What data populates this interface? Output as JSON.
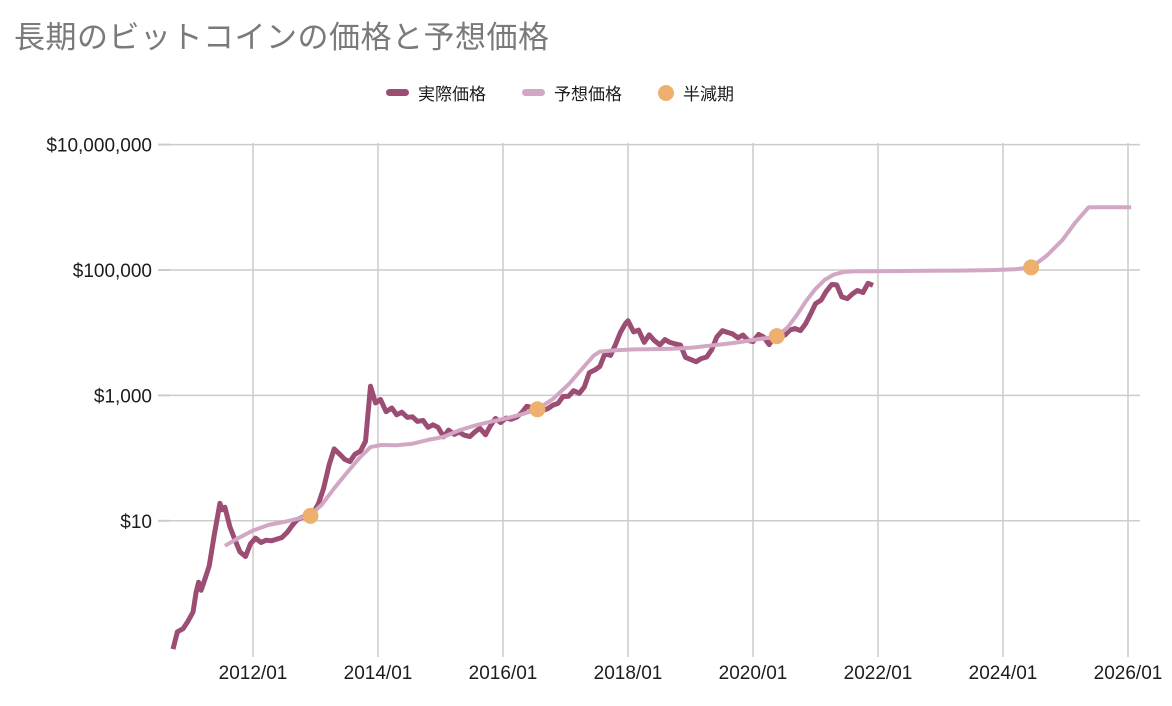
{
  "chart_data": {
    "type": "line",
    "title": "長期のビットコインの価格と予想価格",
    "colors": {
      "actual": "#9c4d73",
      "predicted": "#d2a7c3",
      "halving": "#eeb06f",
      "grid": "#cccccc",
      "axis_text": "#1c1c1c",
      "title": "#7a7a7a",
      "background": "#ffffff"
    },
    "legend": [
      {
        "label": "実際価格",
        "color": "#9c4d73",
        "marker": "line"
      },
      {
        "label": "予想価格",
        "color": "#d2a7c3",
        "marker": "line"
      },
      {
        "label": "半減期",
        "color": "#eeb06f",
        "marker": "circle"
      }
    ],
    "x_axis": {
      "unit": "year-month",
      "range": [
        2010.6,
        2026.2
      ],
      "ticks": [
        {
          "t": 2012.0,
          "label": "2012/01"
        },
        {
          "t": 2014.0,
          "label": "2014/01"
        },
        {
          "t": 2016.0,
          "label": "2016/01"
        },
        {
          "t": 2018.0,
          "label": "2018/01"
        },
        {
          "t": 2020.0,
          "label": "2020/01"
        },
        {
          "t": 2022.0,
          "label": "2022/01"
        },
        {
          "t": 2024.0,
          "label": "2024/01"
        },
        {
          "t": 2026.0,
          "label": "2026/01"
        }
      ]
    },
    "y_axis": {
      "scale": "log",
      "unit": "USD",
      "range": [
        0.09,
        10000000
      ],
      "ticks": [
        {
          "value": 10000000,
          "label": "$10,000,000"
        },
        {
          "value": 100000,
          "label": "$100,000"
        },
        {
          "value": 1000,
          "label": "$1,000"
        },
        {
          "value": 10,
          "label": "$10"
        }
      ]
    },
    "series": [
      {
        "name": "実際価格",
        "color": "#9c4d73",
        "width": 5,
        "points": [
          [
            2010.72,
            0.09
          ],
          [
            2010.79,
            0.17
          ],
          [
            2010.88,
            0.19
          ],
          [
            2010.96,
            0.25
          ],
          [
            2011.04,
            0.35
          ],
          [
            2011.09,
            0.72
          ],
          [
            2011.13,
            1.05
          ],
          [
            2011.17,
            0.78
          ],
          [
            2011.22,
            1.1
          ],
          [
            2011.3,
            1.9
          ],
          [
            2011.38,
            6
          ],
          [
            2011.47,
            19
          ],
          [
            2011.51,
            15
          ],
          [
            2011.55,
            16.5
          ],
          [
            2011.63,
            8
          ],
          [
            2011.71,
            5
          ],
          [
            2011.79,
            3.2
          ],
          [
            2011.88,
            2.7
          ],
          [
            2011.96,
            4.3
          ],
          [
            2012.04,
            5.3
          ],
          [
            2012.13,
            4.5
          ],
          [
            2012.21,
            4.9
          ],
          [
            2012.3,
            4.8
          ],
          [
            2012.38,
            5.1
          ],
          [
            2012.46,
            5.4
          ],
          [
            2012.55,
            6.6
          ],
          [
            2012.63,
            8.5
          ],
          [
            2012.71,
            10.5
          ],
          [
            2012.8,
            11.5
          ],
          [
            2012.88,
            10.8
          ],
          [
            2012.96,
            13
          ],
          [
            2013.05,
            19
          ],
          [
            2013.13,
            33
          ],
          [
            2013.22,
            80
          ],
          [
            2013.3,
            140
          ],
          [
            2013.38,
            117
          ],
          [
            2013.47,
            95
          ],
          [
            2013.55,
            88
          ],
          [
            2013.63,
            115
          ],
          [
            2013.72,
            130
          ],
          [
            2013.8,
            185
          ],
          [
            2013.88,
            1400
          ],
          [
            2013.96,
            760
          ],
          [
            2014.04,
            860
          ],
          [
            2014.13,
            550
          ],
          [
            2014.22,
            630
          ],
          [
            2014.3,
            490
          ],
          [
            2014.38,
            540
          ],
          [
            2014.47,
            445
          ],
          [
            2014.55,
            455
          ],
          [
            2014.63,
            385
          ],
          [
            2014.72,
            400
          ],
          [
            2014.8,
            310
          ],
          [
            2014.88,
            340
          ],
          [
            2014.96,
            310
          ],
          [
            2015.05,
            218
          ],
          [
            2015.13,
            280
          ],
          [
            2015.22,
            240
          ],
          [
            2015.3,
            260
          ],
          [
            2015.38,
            232
          ],
          [
            2015.47,
            220
          ],
          [
            2015.55,
            262
          ],
          [
            2015.63,
            300
          ],
          [
            2015.72,
            235
          ],
          [
            2015.8,
            330
          ],
          [
            2015.88,
            430
          ],
          [
            2015.96,
            370
          ],
          [
            2016.05,
            435
          ],
          [
            2016.13,
            415
          ],
          [
            2016.22,
            450
          ],
          [
            2016.3,
            530
          ],
          [
            2016.38,
            670
          ],
          [
            2016.47,
            640
          ],
          [
            2016.55,
            610
          ],
          [
            2016.63,
            575
          ],
          [
            2016.72,
            615
          ],
          [
            2016.8,
            700
          ],
          [
            2016.88,
            745
          ],
          [
            2016.96,
            960
          ],
          [
            2017.05,
            970
          ],
          [
            2017.13,
            1190
          ],
          [
            2017.22,
            1080
          ],
          [
            2017.3,
            1350
          ],
          [
            2017.38,
            2300
          ],
          [
            2017.47,
            2550
          ],
          [
            2017.55,
            2900
          ],
          [
            2017.63,
            4650
          ],
          [
            2017.72,
            4350
          ],
          [
            2017.8,
            6450
          ],
          [
            2017.88,
            10200
          ],
          [
            2017.96,
            14000
          ],
          [
            2018.0,
            15500
          ],
          [
            2018.09,
            10300
          ],
          [
            2018.17,
            11000
          ],
          [
            2018.26,
            7000
          ],
          [
            2018.34,
            9250
          ],
          [
            2018.42,
            7500
          ],
          [
            2018.51,
            6400
          ],
          [
            2018.59,
            7750
          ],
          [
            2018.67,
            7000
          ],
          [
            2018.76,
            6600
          ],
          [
            2018.84,
            6350
          ],
          [
            2018.92,
            4050
          ],
          [
            2019.0,
            3750
          ],
          [
            2019.09,
            3450
          ],
          [
            2019.17,
            3860
          ],
          [
            2019.26,
            4100
          ],
          [
            2019.34,
            5350
          ],
          [
            2019.42,
            8550
          ],
          [
            2019.51,
            10800
          ],
          [
            2019.59,
            10100
          ],
          [
            2019.67,
            9600
          ],
          [
            2019.76,
            8300
          ],
          [
            2019.84,
            9150
          ],
          [
            2019.92,
            7550
          ],
          [
            2020.0,
            7200
          ],
          [
            2020.09,
            9350
          ],
          [
            2020.17,
            8550
          ],
          [
            2020.26,
            6450
          ],
          [
            2020.34,
            8650
          ],
          [
            2020.42,
            9450
          ],
          [
            2020.51,
            9150
          ],
          [
            2020.59,
            11000
          ],
          [
            2020.67,
            11650
          ],
          [
            2020.76,
            10800
          ],
          [
            2020.84,
            13800
          ],
          [
            2020.92,
            19700
          ],
          [
            2021.0,
            29000
          ],
          [
            2021.09,
            33100
          ],
          [
            2021.17,
            45200
          ],
          [
            2021.26,
            58800
          ],
          [
            2021.34,
            57800
          ],
          [
            2021.42,
            37300
          ],
          [
            2021.51,
            35000
          ],
          [
            2021.59,
            41500
          ],
          [
            2021.67,
            47100
          ],
          [
            2021.76,
            43800
          ],
          [
            2021.84,
            61300
          ],
          [
            2021.92,
            57000
          ]
        ]
      },
      {
        "name": "予想価格",
        "color": "#d2a7c3",
        "width": 4,
        "points": [
          [
            2011.55,
            4
          ],
          [
            2011.75,
            5.2
          ],
          [
            2012.0,
            7
          ],
          [
            2012.25,
            8.6
          ],
          [
            2012.5,
            9.6
          ],
          [
            2012.75,
            11
          ],
          [
            2012.92,
            12.5
          ],
          [
            2013.1,
            18
          ],
          [
            2013.3,
            33
          ],
          [
            2013.5,
            58
          ],
          [
            2013.7,
            100
          ],
          [
            2013.88,
            150
          ],
          [
            2014.05,
            162
          ],
          [
            2014.3,
            160
          ],
          [
            2014.55,
            170
          ],
          [
            2014.8,
            195
          ],
          [
            2015.05,
            218
          ],
          [
            2015.3,
            278
          ],
          [
            2015.55,
            330
          ],
          [
            2015.8,
            380
          ],
          [
            2016.05,
            430
          ],
          [
            2016.3,
            500
          ],
          [
            2016.55,
            600
          ],
          [
            2016.8,
            880
          ],
          [
            2017.05,
            1500
          ],
          [
            2017.3,
            2900
          ],
          [
            2017.45,
            4300
          ],
          [
            2017.55,
            5000
          ],
          [
            2017.8,
            5250
          ],
          [
            2018.05,
            5400
          ],
          [
            2018.3,
            5450
          ],
          [
            2018.55,
            5500
          ],
          [
            2018.8,
            5600
          ],
          [
            2019.05,
            5800
          ],
          [
            2019.3,
            6200
          ],
          [
            2019.55,
            6600
          ],
          [
            2019.8,
            7100
          ],
          [
            2020.05,
            7800
          ],
          [
            2020.25,
            8300
          ],
          [
            2020.38,
            8800
          ],
          [
            2020.55,
            12000
          ],
          [
            2020.7,
            19000
          ],
          [
            2020.85,
            32000
          ],
          [
            2021.0,
            50000
          ],
          [
            2021.15,
            70000
          ],
          [
            2021.3,
            85000
          ],
          [
            2021.45,
            93000
          ],
          [
            2021.6,
            95000
          ],
          [
            2021.9,
            95500
          ],
          [
            2022.3,
            96000
          ],
          [
            2022.8,
            97000
          ],
          [
            2023.3,
            98000
          ],
          [
            2023.8,
            99500
          ],
          [
            2024.2,
            103000
          ],
          [
            2024.45,
            110000
          ],
          [
            2024.7,
            170000
          ],
          [
            2024.95,
            300000
          ],
          [
            2025.15,
            560000
          ],
          [
            2025.37,
            1000000
          ],
          [
            2026.05,
            1000000
          ]
        ]
      }
    ],
    "markers": {
      "name": "半減期",
      "color": "#eeb06f",
      "radius": 8,
      "points": [
        {
          "t": 2012.92,
          "price": 12
        },
        {
          "t": 2016.55,
          "price": 600
        },
        {
          "t": 2020.38,
          "price": 8800
        },
        {
          "t": 2024.45,
          "price": 110000
        }
      ]
    }
  }
}
